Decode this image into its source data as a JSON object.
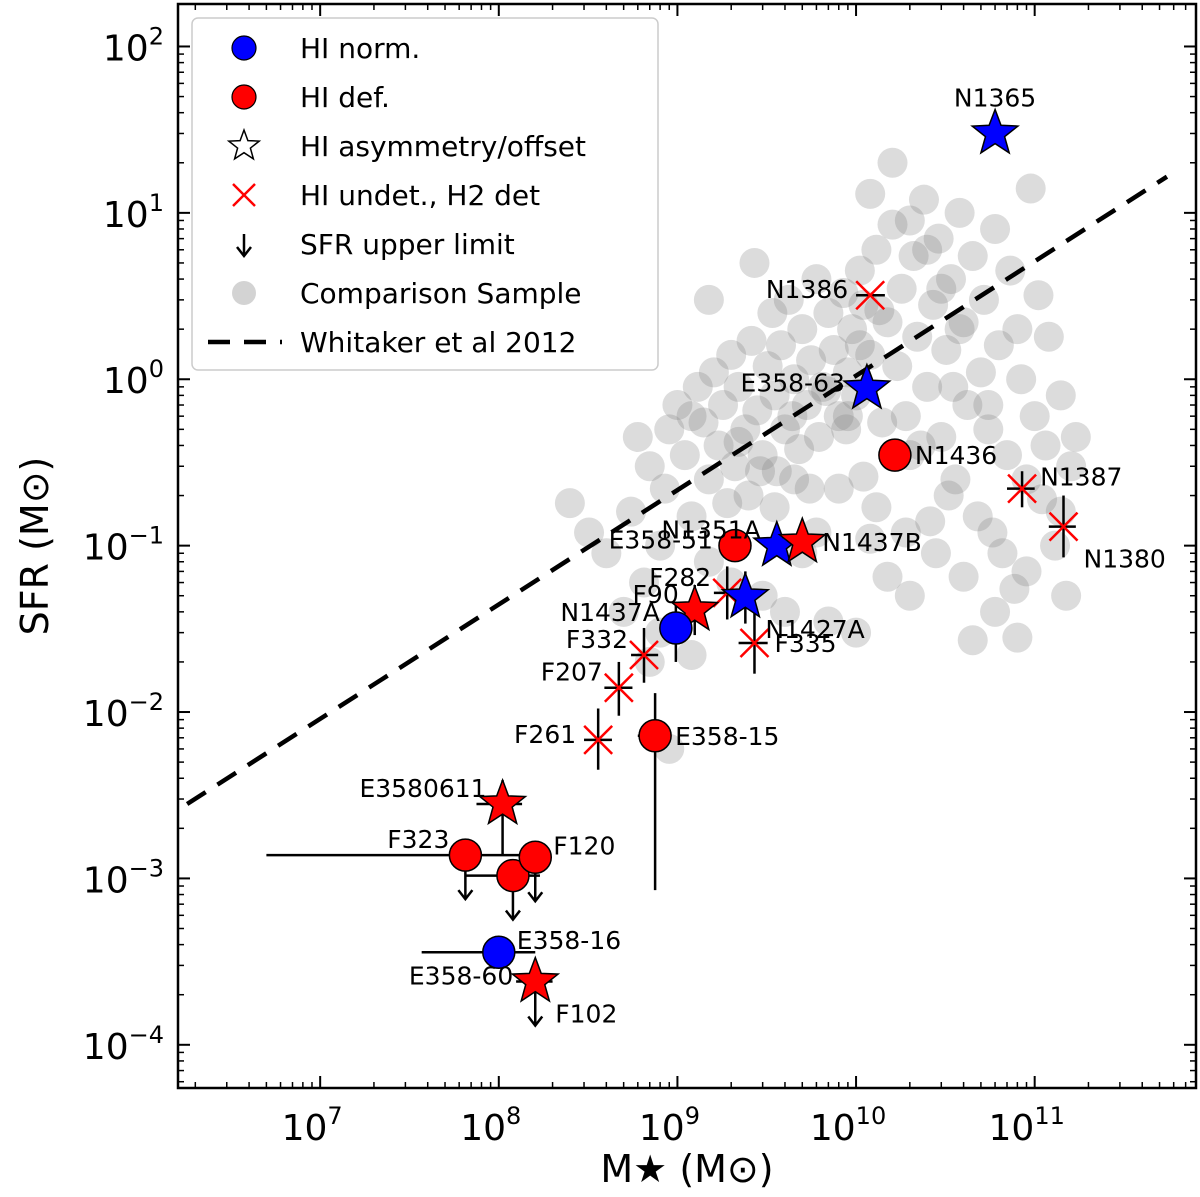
{
  "chart_data": {
    "type": "scatter",
    "xlabel": "M★ (M⊙)",
    "ylabel": "SFR (M⊙)",
    "xscale": "log",
    "yscale": "log",
    "xlim": [
      1600000.0,
      800000000000.0
    ],
    "ylim": [
      5.5e-05,
      180
    ],
    "x_ticks": [
      {
        "value": 10000000.0,
        "base": "10",
        "exp": "7"
      },
      {
        "value": 100000000.0,
        "base": "10",
        "exp": "8"
      },
      {
        "value": 1000000000.0,
        "base": "10",
        "exp": "9"
      },
      {
        "value": 10000000000.0,
        "base": "10",
        "exp": "10"
      },
      {
        "value": 100000000000.0,
        "base": "10",
        "exp": "11"
      }
    ],
    "y_ticks": [
      {
        "value": 0.0001,
        "base": "10",
        "exp": "−4"
      },
      {
        "value": 0.001,
        "base": "10",
        "exp": "−3"
      },
      {
        "value": 0.01,
        "base": "10",
        "exp": "−2"
      },
      {
        "value": 0.1,
        "base": "10",
        "exp": "−1"
      },
      {
        "value": 1,
        "base": "10",
        "exp": "0"
      },
      {
        "value": 10,
        "base": "10",
        "exp": "1"
      },
      {
        "value": 100,
        "base": "10",
        "exp": "2"
      }
    ],
    "colors": {
      "hi_norm": "#0000ff",
      "hi_def": "#ff0000",
      "undet": "#ff0000",
      "comparison": "#808080",
      "errorbar": "#000000",
      "fit": "#000000"
    },
    "legend": {
      "position": "top-left",
      "entries": [
        {
          "marker": "circle-blue",
          "label": "HI norm."
        },
        {
          "marker": "circle-red",
          "label": "HI def."
        },
        {
          "marker": "star-open",
          "label": "HI asymmetry/offset"
        },
        {
          "marker": "x-red",
          "label": "HI undet., H2 det"
        },
        {
          "marker": "arrow-down",
          "label": "SFR upper limit"
        },
        {
          "marker": "circle-grey",
          "label": "Comparison Sample"
        },
        {
          "marker": "dashed-line",
          "label": "Whitaker et al 2012"
        }
      ]
    },
    "fit_line": {
      "name": "Whitaker et al 2012",
      "x": [
        1800000.0,
        550000000000.0
      ],
      "y": [
        0.0028,
        16.5
      ]
    },
    "points": [
      {
        "name": "N1365",
        "x": 60000000000.0,
        "y": 30,
        "marker": "star",
        "group": "hi_norm",
        "label_pos": "above"
      },
      {
        "name": "N1386",
        "x": 12000000000.0,
        "y": 3.2,
        "marker": "x",
        "group": "undet",
        "xerr": [
          10000000000.0,
          14500000000.0
        ],
        "label_pos": "left"
      },
      {
        "name": "E358-63",
        "x": 11500000000.0,
        "y": 0.88,
        "marker": "star",
        "group": "hi_norm",
        "label_pos": "left"
      },
      {
        "name": "N1436",
        "x": 16500000000.0,
        "y": 0.35,
        "marker": "circle",
        "group": "hi_def",
        "label_pos": "right"
      },
      {
        "name": "N1387",
        "x": 85000000000.0,
        "y": 0.22,
        "marker": "x",
        "group": "undet",
        "xerr": [
          70000000000.0,
          100000000000.0
        ],
        "yerr": [
          0.17,
          0.28
        ],
        "label_pos": "upright"
      },
      {
        "name": "N1380",
        "x": 145000000000.0,
        "y": 0.13,
        "marker": "x",
        "group": "undet",
        "xerr": [
          120000000000.0,
          170000000000.0
        ],
        "yerr": [
          0.085,
          0.2
        ],
        "label_pos": "downright"
      },
      {
        "name": "N1351A",
        "x": 3600000000.0,
        "y": 0.1,
        "marker": "star",
        "group": "hi_norm",
        "label_pos": "upleft"
      },
      {
        "name": "E358-51",
        "x": 2100000000.0,
        "y": 0.1,
        "marker": "circle",
        "group": "hi_def",
        "xerr": [
          1900000000.0,
          2500000000.0
        ],
        "label_pos": "left"
      },
      {
        "name": "N1437B",
        "x": 5000000000.0,
        "y": 0.105,
        "marker": "star",
        "group": "hi_def",
        "label_pos": "right"
      },
      {
        "name": "F282",
        "x": 1900000000.0,
        "y": 0.052,
        "marker": "x",
        "group": "undet",
        "xerr": [
          1600000000.0,
          2300000000.0
        ],
        "yerr": [
          0.036,
          0.075
        ],
        "label_pos": "upleft"
      },
      {
        "name": "N1427A",
        "x": 2400000000.0,
        "y": 0.049,
        "marker": "star",
        "group": "hi_norm",
        "yerr": [
          0.034,
          0.07
        ],
        "label_pos": "downright"
      },
      {
        "name": "F90",
        "x": 1250000000.0,
        "y": 0.041,
        "marker": "star",
        "group": "hi_def",
        "yerr": [
          0.029,
          0.058
        ],
        "label_pos": "upleft"
      },
      {
        "name": "N1437A",
        "x": 980000000.0,
        "y": 0.032,
        "marker": "circle",
        "group": "hi_norm",
        "yerr": [
          0.02,
          0.046
        ],
        "label_pos": "upleft"
      },
      {
        "name": "F335",
        "x": 2700000000.0,
        "y": 0.026,
        "marker": "x",
        "group": "undet",
        "xerr": [
          2200000000.0,
          3200000000.0
        ],
        "yerr": [
          0.017,
          0.04
        ],
        "label_pos": "right"
      },
      {
        "name": "F332",
        "x": 650000000.0,
        "y": 0.022,
        "marker": "x",
        "group": "undet",
        "xerr": [
          550000000.0,
          780000000.0
        ],
        "yerr": [
          0.015,
          0.032
        ],
        "label_pos": "upleft"
      },
      {
        "name": "F207",
        "x": 470000000.0,
        "y": 0.014,
        "marker": "x",
        "group": "undet",
        "xerr": [
          390000000.0,
          560000000.0
        ],
        "yerr": [
          0.0095,
          0.02
        ],
        "label_pos": "upleft"
      },
      {
        "name": "F261",
        "x": 360000000.0,
        "y": 0.0068,
        "marker": "x",
        "group": "undet",
        "xerr": [
          300000000.0,
          430000000.0
        ],
        "yerr": [
          0.0045,
          0.0105
        ],
        "label_pos": "left"
      },
      {
        "name": "E358-15",
        "x": 750000000.0,
        "y": 0.0072,
        "marker": "circle",
        "group": "hi_def",
        "xerr": [
          600000000.0,
          900000000.0
        ],
        "yerr": [
          0.00085,
          0.013
        ],
        "label_pos": "right"
      },
      {
        "name": "E3580611",
        "x": 105000000.0,
        "y": 0.0028,
        "marker": "star",
        "group": "hi_def",
        "xerr": [
          75000000.0,
          135000000.0
        ],
        "yerr": [
          0.0014,
          0.0039
        ],
        "label_pos": "upleft"
      },
      {
        "name": "F323",
        "x": 65000000.0,
        "y": 0.00138,
        "marker": "circle",
        "group": "hi_def",
        "xerr": [
          5000000.0,
          130000000.0
        ],
        "upper_limit": true,
        "label_pos": "upleft"
      },
      {
        "name": "",
        "x": 120000000.0,
        "y": 0.00104,
        "marker": "circle",
        "group": "hi_def",
        "xerr": [
          65000000.0,
          170000000.0
        ],
        "upper_limit": true
      },
      {
        "name": "F120",
        "x": 160000000.0,
        "y": 0.00134,
        "marker": "circle",
        "group": "hi_def",
        "upper_limit": true,
        "label_pos": "upright"
      },
      {
        "name": "E358-16",
        "x": 100000000.0,
        "y": 0.00036,
        "marker": "circle",
        "group": "hi_norm",
        "xerr": [
          37000000.0,
          160000000.0
        ],
        "label_pos": "upright"
      },
      {
        "name": "E358-60",
        "x": 160000000.0,
        "y": 0.00024,
        "marker": "star",
        "group": "hi_def",
        "xerr": [
          125000000.0,
          200000000.0
        ],
        "upper_limit": true,
        "label_pos": "left"
      },
      {
        "name": "F102",
        "x": 160000000.0,
        "y": 0.00024,
        "marker": "none",
        "group": "hi_def",
        "label_pos": "downright"
      }
    ],
    "comparison_sample": [
      [
        250000000.0,
        0.18
      ],
      [
        320000000.0,
        0.12
      ],
      [
        400000000.0,
        0.09
      ],
      [
        550000000.0,
        0.16
      ],
      [
        700000000.0,
        0.3
      ],
      [
        600000000.0,
        0.45
      ],
      [
        850000000.0,
        0.22
      ],
      [
        900000000.0,
        0.5
      ],
      [
        1000000000.0,
        0.7
      ],
      [
        1100000000.0,
        0.35
      ],
      [
        1200000000.0,
        0.15
      ],
      [
        1300000000.0,
        0.9
      ],
      [
        1400000000.0,
        0.55
      ],
      [
        1500000000.0,
        0.25
      ],
      [
        1600000000.0,
        1.1
      ],
      [
        1700000000.0,
        0.4
      ],
      [
        1800000000.0,
        0.7
      ],
      [
        1900000000.0,
        0.18
      ],
      [
        2000000000.0,
        1.4
      ],
      [
        2100000000.0,
        0.3
      ],
      [
        2200000000.0,
        0.9
      ],
      [
        2400000000.0,
        0.5
      ],
      [
        2500000000.0,
        0.2
      ],
      [
        2600000000.0,
        1.7
      ],
      [
        2800000000.0,
        0.65
      ],
      [
        3000000000.0,
        0.35
      ],
      [
        3200000000.0,
        1.2
      ],
      [
        3400000000.0,
        2.5
      ],
      [
        3500000000.0,
        0.8
      ],
      [
        3600000000.0,
        0.28
      ],
      [
        3800000000.0,
        1.6
      ],
      [
        4000000000.0,
        0.5
      ],
      [
        4200000000.0,
        3.0
      ],
      [
        4500000000.0,
        1.0
      ],
      [
        4800000000.0,
        0.38
      ],
      [
        5000000000.0,
        2.0
      ],
      [
        5300000000.0,
        0.7
      ],
      [
        5600000000.0,
        1.3
      ],
      [
        6000000000.0,
        4.0
      ],
      [
        6200000000.0,
        0.45
      ],
      [
        6500000000.0,
        0.9
      ],
      [
        7000000000.0,
        2.5
      ],
      [
        7500000000.0,
        1.5
      ],
      [
        8000000000.0,
        0.6
      ],
      [
        8500000000.0,
        3.3
      ],
      [
        9000000000.0,
        1.1
      ],
      [
        9500000000.0,
        2.0
      ],
      [
        10000000000.0,
        0.8
      ],
      [
        10500000000.0,
        4.5
      ],
      [
        11000000000.0,
        2.8
      ],
      [
        12000000000.0,
        1.4
      ],
      [
        13000000000.0,
        6.0
      ],
      [
        14000000000.0,
        0.55
      ],
      [
        15000000000.0,
        2.2
      ],
      [
        16000000000.0,
        8.5
      ],
      [
        17000000000.0,
        1.2
      ],
      [
        18000000000.0,
        3.5
      ],
      [
        20000000000.0,
        0.35
      ],
      [
        21000000000.0,
        5.5
      ],
      [
        22000000000.0,
        1.8
      ],
      [
        24000000000.0,
        12
      ],
      [
        25000000000.0,
        0.9
      ],
      [
        27000000000.0,
        2.8
      ],
      [
        29000000000.0,
        7.0
      ],
      [
        30000000000.0,
        0.45
      ],
      [
        32000000000.0,
        1.5
      ],
      [
        34000000000.0,
        4.0
      ],
      [
        36000000000.0,
        0.25
      ],
      [
        38000000000.0,
        10
      ],
      [
        40000000000.0,
        2.2
      ],
      [
        42000000000.0,
        0.7
      ],
      [
        45000000000.0,
        5.5
      ],
      [
        48000000000.0,
        0.15
      ],
      [
        50000000000.0,
        1.1
      ],
      [
        52000000000.0,
        3.0
      ],
      [
        55000000000.0,
        0.5
      ],
      [
        60000000000.0,
        8.0
      ],
      [
        63000000000.0,
        1.6
      ],
      [
        66000000000.0,
        0.09
      ],
      [
        70000000000.0,
        0.35
      ],
      [
        73000000000.0,
        4.5
      ],
      [
        77000000000.0,
        0.055
      ],
      [
        80000000000.0,
        2.0
      ],
      [
        84000000000.0,
        1.0
      ],
      [
        90000000000.0,
        0.07
      ],
      [
        95000000000.0,
        14
      ],
      [
        100000000000.0,
        0.6
      ],
      [
        105000000000.0,
        3.2
      ],
      [
        110000000000.0,
        0.19
      ],
      [
        115000000000.0,
        0.4
      ],
      [
        120000000000.0,
        1.8
      ],
      [
        130000000000.0,
        0.1
      ],
      [
        140000000000.0,
        0.8
      ],
      [
        150000000000.0,
        0.05
      ],
      [
        160000000000.0,
        0.3
      ],
      [
        170000000000.0,
        0.45
      ],
      [
        800000000.0,
        0.1
      ],
      [
        1500000000.0,
        0.08
      ],
      [
        2000000000.0,
        0.06
      ],
      [
        3000000000.0,
        0.05
      ],
      [
        4000000000.0,
        0.04
      ],
      [
        5000000000.0,
        0.09
      ],
      [
        6000000000.0,
        0.12
      ],
      [
        7000000000.0,
        0.035
      ],
      [
        10000000000.0,
        0.03
      ],
      [
        12000000000.0,
        0.11
      ],
      [
        15000000000.0,
        0.065
      ],
      [
        20000000000.0,
        0.05
      ],
      [
        26000000000.0,
        0.14
      ],
      [
        33000000000.0,
        0.2
      ],
      [
        45000000000.0,
        0.027
      ],
      [
        58000000000.0,
        0.12
      ],
      [
        650000000.0,
        0.06
      ],
      [
        500000000.0,
        0.04
      ],
      [
        800000000.0,
        0.03
      ],
      [
        1200000000.0,
        0.022
      ],
      [
        900000000.0,
        0.006
      ],
      [
        700000000.0,
        0.02
      ],
      [
        3500000000.0,
        0.17
      ],
      [
        4500000000.0,
        0.25
      ],
      [
        8000000000.0,
        0.22
      ],
      [
        11000000000.0,
        0.26
      ],
      [
        19000000000.0,
        0.6
      ],
      [
        23000000000.0,
        0.4
      ],
      [
        35000000000.0,
        0.9
      ],
      [
        55000000000.0,
        0.7
      ],
      [
        90000000000.0,
        0.25
      ],
      [
        140000000000.0,
        0.16
      ],
      [
        1500000000.0,
        3.0
      ],
      [
        2700000000.0,
        5.0
      ],
      [
        5500000000.0,
        0.22
      ],
      [
        9000000000.0,
        0.6
      ],
      [
        13000000000.0,
        0.17
      ],
      [
        19000000000.0,
        0.12
      ],
      [
        28000000000.0,
        0.09
      ],
      [
        40000000000.0,
        0.065
      ],
      [
        60000000000.0,
        0.04
      ],
      [
        80000000000.0,
        0.028
      ],
      [
        12000000000.0,
        13
      ],
      [
        16000000000.0,
        20
      ],
      [
        20000000000.0,
        9.0
      ],
      [
        25000000000.0,
        6.0
      ],
      [
        30000000000.0,
        3.5
      ],
      [
        38000000000.0,
        2.0
      ],
      [
        1200000000.0,
        0.6
      ],
      [
        2200000000.0,
        0.42
      ],
      [
        2900000000.0,
        0.28
      ],
      [
        4400000000.0,
        0.6
      ],
      [
        6800000000.0,
        0.85
      ],
      [
        8800000000.0,
        0.5
      ],
      [
        10500000000.0,
        1.6
      ],
      [
        13500000000.0,
        2.6
      ]
    ]
  }
}
